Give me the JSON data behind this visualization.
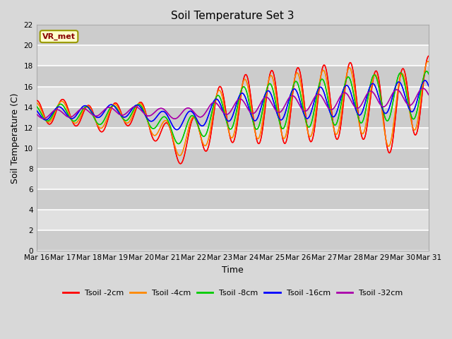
{
  "title": "Soil Temperature Set 3",
  "xlabel": "Time",
  "ylabel": "Soil Temperature (C)",
  "ylim": [
    0,
    22
  ],
  "yticks": [
    0,
    2,
    4,
    6,
    8,
    10,
    12,
    14,
    16,
    18,
    20,
    22
  ],
  "bg_color": "#d8d8d8",
  "plot_bg_color": "#d8d8d8",
  "grid_color": "#ffffff",
  "annotation_text": "VR_met",
  "annotation_bg": "#ffffcc",
  "annotation_edge": "#999900",
  "annotation_text_color": "#880000",
  "colors": {
    "Tsoil -2cm": "#ff0000",
    "Tsoil -4cm": "#ff8800",
    "Tsoil -8cm": "#00cc00",
    "Tsoil -16cm": "#0000ff",
    "Tsoil -32cm": "#aa00aa"
  },
  "x_tick_labels": [
    "Mar 16",
    "Mar 17",
    "Mar 18",
    "Mar 19",
    "Mar 20",
    "Mar 21",
    "Mar 22",
    "Mar 23",
    "Mar 24",
    "Mar 25",
    "Mar 26",
    "Mar 27",
    "Mar 28",
    "Mar 29",
    "Mar 30",
    "Mar 31"
  ],
  "num_points": 480
}
